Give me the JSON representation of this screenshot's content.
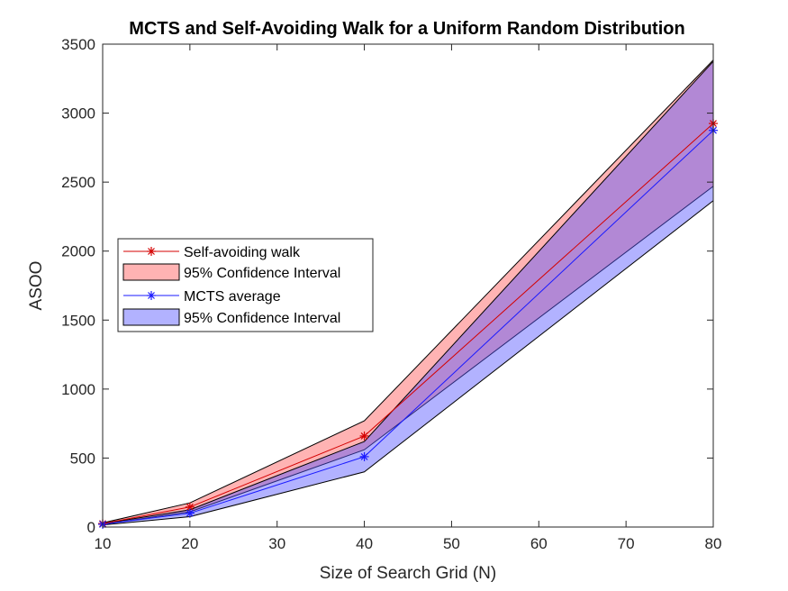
{
  "chart_data": {
    "type": "line",
    "title": "MCTS and Self-Avoiding Walk for a Uniform Random Distribution",
    "xlabel": "Size of Search Grid (N)",
    "ylabel": "ASOO",
    "xlim": [
      10,
      80
    ],
    "ylim": [
      0,
      3500
    ],
    "xticks": [
      10,
      20,
      30,
      40,
      50,
      60,
      70,
      80
    ],
    "yticks": [
      0,
      500,
      1000,
      1500,
      2000,
      2500,
      3000,
      3500
    ],
    "x": [
      10,
      20,
      40,
      80
    ],
    "grid": false,
    "legend_position": "left-middle",
    "series": [
      {
        "name": "Self-avoiding walk",
        "values": [
          25,
          145,
          660,
          2925
        ],
        "color": "#d40000",
        "marker": "asterisk",
        "ci_name": "95% Confidence Interval",
        "ci_lower": [
          20,
          110,
          560,
          2470
        ],
        "ci_upper": [
          30,
          175,
          770,
          3385
        ],
        "ci_fill": "#ff8080",
        "ci_opacity": 0.6
      },
      {
        "name": "MCTS average",
        "values": [
          20,
          100,
          510,
          2875
        ],
        "color": "#1a1aff",
        "marker": "asterisk",
        "ci_name": "95% Confidence Interval",
        "ci_lower": [
          15,
          75,
          400,
          2365
        ],
        "ci_upper": [
          25,
          125,
          620,
          3375
        ],
        "ci_fill": "#5555ff",
        "ci_opacity": 0.45
      }
    ]
  }
}
